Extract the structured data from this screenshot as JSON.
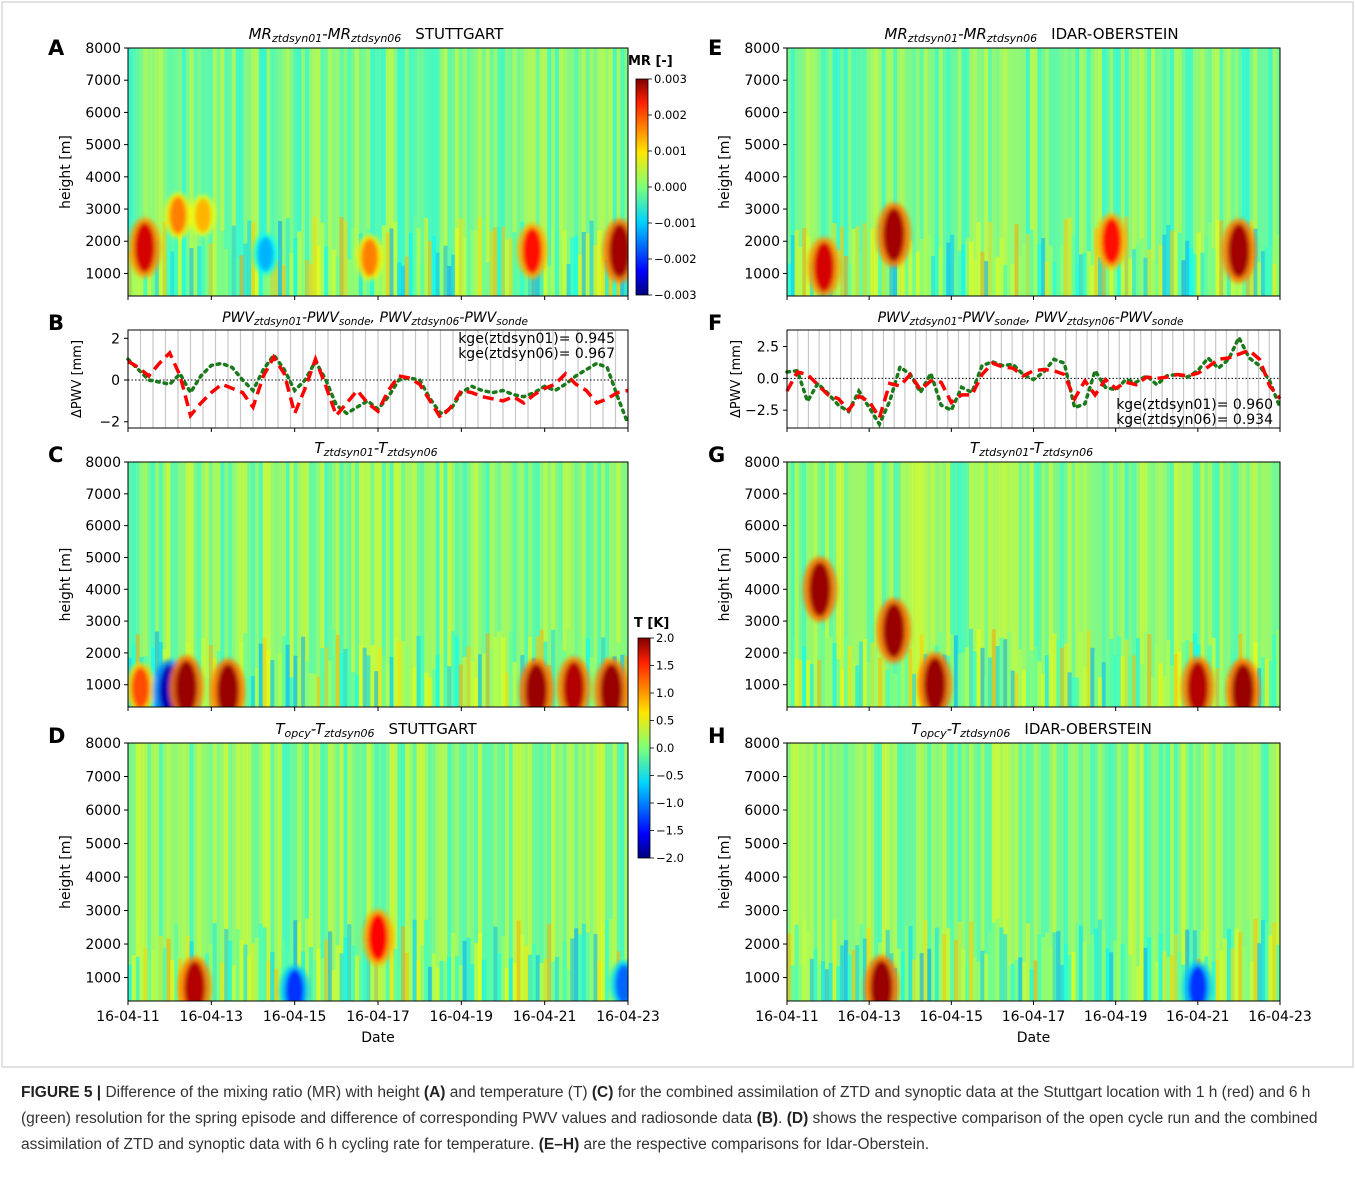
{
  "figure": {
    "x_dates": [
      "16-04-11",
      "16-04-13",
      "16-04-15",
      "16-04-17",
      "16-04-19",
      "16-04-21",
      "16-04-23"
    ],
    "x_label": "Date",
    "height_label": "height [m]",
    "height_ticks": [
      1000,
      2000,
      3000,
      4000,
      5000,
      6000,
      7000,
      8000
    ],
    "colors": {
      "pwv01": "#ff0000",
      "pwv06": "#1a7a1a",
      "frame": "#d9d9d9",
      "caption_text": "#333333"
    }
  },
  "colorbars": {
    "mr": {
      "title": "MR [-]",
      "ticks": [
        "0.003",
        "0.002",
        "0.001",
        "0.000",
        "−0.001",
        "−0.002",
        "−0.003"
      ],
      "range": [
        -0.003,
        0.003
      ]
    },
    "t": {
      "title": "T [K]",
      "ticks": [
        "2.0",
        "1.5",
        "1.0",
        "0.5",
        "0.0",
        "−0.5",
        "−1.0",
        "−1.5",
        "−2.0"
      ],
      "range": [
        -2.0,
        2.0
      ]
    }
  },
  "panels": {
    "A": {
      "letter": "A",
      "title_var": "MR",
      "title_sub1": "ztdsyn01",
      "title_mid": "-MR",
      "title_sub2": "ztdsyn06",
      "station": "STUTTGART"
    },
    "B": {
      "letter": "B",
      "title_a": "PWV",
      "sub_a": "ztdsyn01",
      "title_b": "-PWV",
      "sub_b": "sonde",
      "title_c": ", PWV",
      "sub_c": "ztdsyn06",
      "title_d": "-PWV",
      "sub_d": "sonde",
      "ylabel": "ΔPWV [mm]",
      "yticks": [
        "2",
        "0",
        "−2"
      ],
      "kge1": "kge(ztdsyn01)= 0.945",
      "kge2": "kge(ztdsyn06)= 0.967"
    },
    "C": {
      "letter": "C",
      "title_var": "T",
      "title_sub1": "ztdsyn01",
      "title_mid": "-T",
      "title_sub2": "ztdsyn06",
      "station": ""
    },
    "D": {
      "letter": "D",
      "title_var": "T",
      "title_sub1": "opcy",
      "title_mid": "-T",
      "title_sub2": "ztdsyn06",
      "station": "STUTTGART"
    },
    "E": {
      "letter": "E",
      "title_var": "MR",
      "title_sub1": "ztdsyn01",
      "title_mid": "-MR",
      "title_sub2": "ztdsyn06",
      "station": "IDAR-OBERSTEIN"
    },
    "F": {
      "letter": "F",
      "title_a": "PWV",
      "sub_a": "ztdsyn01",
      "title_b": "-PWV",
      "sub_b": "sonde",
      "title_c": ", PWV",
      "sub_c": "ztdsyn06",
      "title_d": "-PWV",
      "sub_d": "sonde",
      "ylabel": "ΔPWV [mm]",
      "yticks": [
        "2.5",
        "0.0",
        "−2.5"
      ],
      "kge1": "kge(ztdsyn01)= 0.960",
      "kge2": "kge(ztdsyn06)= 0.934"
    },
    "G": {
      "letter": "G",
      "title_var": "T",
      "title_sub1": "ztdsyn01",
      "title_mid": "-T",
      "title_sub2": "ztdsyn06",
      "station": ""
    },
    "H": {
      "letter": "H",
      "title_var": "T",
      "title_sub1": "opcy",
      "title_mid": "-T",
      "title_sub2": "ztdsyn06",
      "station": "IDAR-OBERSTEIN"
    }
  },
  "chart_data": [
    {
      "panel": "A",
      "type": "heatmap",
      "title": "MRztdsyn01-MRztdsyn06 STUTTGART",
      "ylabel": "height [m]",
      "ylim": [
        300,
        8000
      ],
      "xlim": [
        "16-04-11",
        "16-04-23"
      ],
      "colorbar": "MR [-]",
      "vrange": [
        -0.003,
        0.003
      ],
      "hotspots": [
        {
          "date": "16-04-11.4",
          "height": 1800,
          "value": 0.0025
        },
        {
          "date": "16-04-12.2",
          "height": 2800,
          "value": 0.0015
        },
        {
          "date": "16-04-12.8",
          "height": 2800,
          "value": 0.0012
        },
        {
          "date": "16-04-14.3",
          "height": 1600,
          "value": -0.0012
        },
        {
          "date": "16-04-16.8",
          "height": 1500,
          "value": 0.0015
        },
        {
          "date": "16-04-20.7",
          "height": 1700,
          "value": 0.0022
        },
        {
          "date": "16-04-22.8",
          "height": 1700,
          "value": 0.0028
        }
      ]
    },
    {
      "panel": "B",
      "type": "line",
      "title": "PWVztdsyn01-PWVsonde, PWVztdsyn06-PWVsonde",
      "ylabel": "ΔPWV [mm]",
      "ylim": [
        -2.3,
        2.4
      ],
      "xlim": [
        "16-04-11",
        "16-04-23"
      ],
      "series": [
        {
          "name": "ztdsyn01",
          "kge": 0.945,
          "x": [
            "16-04-11.00",
            "16-04-11.25",
            "16-04-11.50",
            "16-04-11.75",
            "16-04-12.00",
            "16-04-12.25",
            "16-04-12.50",
            "16-04-12.75",
            "16-04-13.00",
            "16-04-13.25",
            "16-04-13.50",
            "16-04-13.75",
            "16-04-14.00",
            "16-04-14.25",
            "16-04-14.50",
            "16-04-14.75",
            "16-04-15.00",
            "16-04-15.25",
            "16-04-15.50",
            "16-04-15.75",
            "16-04-16.00",
            "16-04-16.25",
            "16-04-16.50",
            "16-04-16.75",
            "16-04-17.00",
            "16-04-17.25",
            "16-04-17.50",
            "16-04-17.75",
            "16-04-18.00",
            "16-04-18.25",
            "16-04-18.50",
            "16-04-18.75",
            "16-04-19.00",
            "16-04-19.25",
            "16-04-19.50",
            "16-04-19.75",
            "16-04-20.00",
            "16-04-20.25",
            "16-04-20.50",
            "16-04-20.75",
            "16-04-21.00",
            "16-04-21.25",
            "16-04-21.50",
            "16-04-21.75",
            "16-04-22.00",
            "16-04-22.25",
            "16-04-22.50",
            "16-04-22.75",
            "16-04-23.00"
          ],
          "y": [
            0.9,
            0.6,
            0.2,
            0.8,
            1.3,
            0.2,
            -1.7,
            -1.1,
            -0.6,
            -0.2,
            -0.4,
            -0.6,
            -1.3,
            0.2,
            1.1,
            0.3,
            -1.6,
            -0.4,
            1.0,
            -0.3,
            -1.7,
            -1.1,
            -0.5,
            -1.1,
            -1.5,
            -0.5,
            0.2,
            0.1,
            -0.2,
            -1.0,
            -1.8,
            -1.3,
            -0.5,
            -0.6,
            -0.8,
            -0.9,
            -1.0,
            -0.8,
            -1.1,
            -0.7,
            -0.4,
            -0.2,
            0.3,
            -0.2,
            -0.5,
            -1.1,
            -0.9,
            -0.6,
            -0.5
          ]
        },
        {
          "name": "ztdsyn06",
          "kge": 0.967,
          "x": [
            "16-04-11.00",
            "16-04-11.25",
            "16-04-11.50",
            "16-04-11.75",
            "16-04-12.00",
            "16-04-12.25",
            "16-04-12.50",
            "16-04-12.75",
            "16-04-13.00",
            "16-04-13.25",
            "16-04-13.50",
            "16-04-13.75",
            "16-04-14.00",
            "16-04-14.25",
            "16-04-14.50",
            "16-04-14.75",
            "16-04-15.00",
            "16-04-15.25",
            "16-04-15.50",
            "16-04-15.75",
            "16-04-16.00",
            "16-04-16.25",
            "16-04-16.50",
            "16-04-16.75",
            "16-04-17.00",
            "16-04-17.25",
            "16-04-17.50",
            "16-04-17.75",
            "16-04-18.00",
            "16-04-18.25",
            "16-04-18.50",
            "16-04-18.75",
            "16-04-19.00",
            "16-04-19.25",
            "16-04-19.50",
            "16-04-19.75",
            "16-04-20.00",
            "16-04-20.25",
            "16-04-20.50",
            "16-04-20.75",
            "16-04-21.00",
            "16-04-21.25",
            "16-04-21.50",
            "16-04-21.75",
            "16-04-22.00",
            "16-04-22.25",
            "16-04-22.50",
            "16-04-22.75",
            "16-04-23.00"
          ],
          "y": [
            1.0,
            0.5,
            0.0,
            -0.1,
            -0.2,
            0.3,
            -0.6,
            0.2,
            0.7,
            0.8,
            0.6,
            0.0,
            -0.5,
            0.5,
            1.2,
            0.5,
            -0.5,
            0.0,
            0.9,
            0.0,
            -1.2,
            -1.6,
            -1.3,
            -1.0,
            -1.4,
            -0.8,
            0.0,
            0.1,
            0.0,
            -0.9,
            -1.6,
            -1.4,
            -0.6,
            -0.3,
            -0.5,
            -0.6,
            -0.5,
            -0.7,
            -0.8,
            -0.6,
            -0.3,
            -0.5,
            -0.2,
            0.2,
            0.5,
            0.8,
            0.6,
            -0.8,
            -2.1
          ]
        }
      ]
    },
    {
      "panel": "C",
      "type": "heatmap",
      "title": "Tztdsyn01-Tztdsyn06",
      "ylabel": "height [m]",
      "ylim": [
        300,
        8000
      ],
      "xlim": [
        "16-04-11",
        "16-04-23"
      ],
      "colorbar": "T [K]",
      "vrange": [
        -2.0,
        2.0
      ],
      "hotspots": [
        {
          "date": "16-04-11.3",
          "height": 900,
          "value": 1.2
        },
        {
          "date": "16-04-12.0",
          "height": 800,
          "value": -1.8
        },
        {
          "date": "16-04-12.4",
          "height": 900,
          "value": 1.9
        },
        {
          "date": "16-04-13.4",
          "height": 800,
          "value": 1.9
        },
        {
          "date": "16-04-20.8",
          "height": 800,
          "value": 1.9
        },
        {
          "date": "16-04-21.7",
          "height": 900,
          "value": 1.8
        },
        {
          "date": "16-04-22.6",
          "height": 800,
          "value": 1.9
        }
      ]
    },
    {
      "panel": "D",
      "type": "heatmap",
      "title": "Topcy-Tztdsyn06 STUTTGART",
      "xlabel": "Date",
      "ylabel": "height [m]",
      "ylim": [
        300,
        8000
      ],
      "xlim": [
        "16-04-11",
        "16-04-23"
      ],
      "colorbar": "T [K]",
      "vrange": [
        -2.0,
        2.0
      ],
      "hotspots": [
        {
          "date": "16-04-12.6",
          "height": 700,
          "value": 1.8
        },
        {
          "date": "16-04-17.0",
          "height": 2200,
          "value": 1.5
        },
        {
          "date": "16-04-15.0",
          "height": 600,
          "value": -1.3
        },
        {
          "date": "16-04-22.9",
          "height": 800,
          "value": -1.1
        }
      ]
    },
    {
      "panel": "E",
      "type": "heatmap",
      "title": "MRztdsyn01-MRztdsyn06 IDAR-OBERSTEIN",
      "ylabel": "height [m]",
      "ylim": [
        300,
        8000
      ],
      "xlim": [
        "16-04-11",
        "16-04-23"
      ],
      "colorbar": "MR [-]",
      "vrange": [
        -0.003,
        0.003
      ],
      "hotspots": [
        {
          "date": "16-04-11.9",
          "height": 1200,
          "value": 0.0025
        },
        {
          "date": "16-04-13.6",
          "height": 2200,
          "value": 0.0028
        },
        {
          "date": "16-04-18.9",
          "height": 2000,
          "value": 0.0022
        },
        {
          "date": "16-04-22.0",
          "height": 1700,
          "value": 0.0028
        }
      ]
    },
    {
      "panel": "F",
      "type": "line",
      "title": "PWVztdsyn01-PWVsonde, PWVztdsyn06-PWVsonde",
      "ylabel": "ΔPWV [mm]",
      "ylim": [
        -3.9,
        3.8
      ],
      "xlim": [
        "16-04-11",
        "16-04-23"
      ],
      "series": [
        {
          "name": "ztdsyn01",
          "kge": 0.96,
          "x": [
            "16-04-11.00",
            "16-04-11.25",
            "16-04-11.50",
            "16-04-11.75",
            "16-04-12.00",
            "16-04-12.25",
            "16-04-12.50",
            "16-04-12.75",
            "16-04-13.00",
            "16-04-13.25",
            "16-04-13.50",
            "16-04-13.75",
            "16-04-14.00",
            "16-04-14.25",
            "16-04-14.50",
            "16-04-14.75",
            "16-04-15.00",
            "16-04-15.25",
            "16-04-15.50",
            "16-04-15.75",
            "16-04-16.00",
            "16-04-16.25",
            "16-04-16.50",
            "16-04-16.75",
            "16-04-17.00",
            "16-04-17.25",
            "16-04-17.50",
            "16-04-17.75",
            "16-04-18.00",
            "16-04-18.25",
            "16-04-18.50",
            "16-04-18.75",
            "16-04-19.00",
            "16-04-19.25",
            "16-04-19.50",
            "16-04-19.75",
            "16-04-20.00",
            "16-04-20.25",
            "16-04-20.50",
            "16-04-20.75",
            "16-04-21.00",
            "16-04-21.25",
            "16-04-21.50",
            "16-04-21.75",
            "16-04-22.00",
            "16-04-22.25",
            "16-04-22.50",
            "16-04-22.75",
            "16-04-23.00"
          ],
          "y": [
            -1.0,
            0.5,
            0.3,
            -0.5,
            -1.3,
            -1.6,
            -2.5,
            -1.4,
            -1.8,
            -3.1,
            -0.4,
            -0.6,
            0.3,
            -0.9,
            -0.2,
            -0.3,
            -1.9,
            -1.3,
            -1.3,
            0.3,
            1.2,
            0.9,
            0.8,
            0.2,
            0.6,
            0.7,
            0.6,
            0.3,
            -1.6,
            -0.2,
            -1.3,
            -0.1,
            -0.8,
            -0.3,
            -0.5,
            0.1,
            0.0,
            0.1,
            0.3,
            0.2,
            0.4,
            0.9,
            1.5,
            1.6,
            1.9,
            2.2,
            1.5,
            -0.6,
            -1.6
          ]
        },
        {
          "name": "ztdsyn06",
          "kge": 0.934,
          "x": [
            "16-04-11.00",
            "16-04-11.25",
            "16-04-11.50",
            "16-04-11.75",
            "16-04-12.00",
            "16-04-12.25",
            "16-04-12.50",
            "16-04-12.75",
            "16-04-13.00",
            "16-04-13.25",
            "16-04-13.50",
            "16-04-13.75",
            "16-04-14.00",
            "16-04-14.25",
            "16-04-14.50",
            "16-04-14.75",
            "16-04-15.00",
            "16-04-15.25",
            "16-04-15.50",
            "16-04-15.75",
            "16-04-16.00",
            "16-04-16.25",
            "16-04-16.50",
            "16-04-16.75",
            "16-04-17.00",
            "16-04-17.25",
            "16-04-17.50",
            "16-04-17.75",
            "16-04-18.00",
            "16-04-18.25",
            "16-04-18.50",
            "16-04-18.75",
            "16-04-19.00",
            "16-04-19.25",
            "16-04-19.50",
            "16-04-19.75",
            "16-04-20.00",
            "16-04-20.25",
            "16-04-20.50",
            "16-04-20.75",
            "16-04-21.00",
            "16-04-21.25",
            "16-04-21.50",
            "16-04-21.75",
            "16-04-22.00",
            "16-04-22.25",
            "16-04-22.50",
            "16-04-22.75",
            "16-04-23.00"
          ],
          "y": [
            0.5,
            0.6,
            -1.8,
            -0.4,
            -1.2,
            -2.1,
            -2.6,
            -1.0,
            -2.3,
            -3.6,
            -1.8,
            0.9,
            0.3,
            -1.1,
            0.4,
            -2.1,
            -2.5,
            -0.7,
            -1.1,
            1.0,
            1.3,
            1.0,
            1.1,
            0.3,
            -0.1,
            0.5,
            1.5,
            1.2,
            -2.3,
            -2.0,
            0.6,
            -0.7,
            -0.9,
            -0.1,
            -0.3,
            0.2,
            -0.5,
            0.2,
            0.3,
            0.1,
            0.6,
            1.6,
            0.8,
            1.5,
            3.2,
            1.6,
            1.0,
            -0.2,
            -2.3
          ]
        }
      ]
    },
    {
      "panel": "G",
      "type": "heatmap",
      "title": "Tztdsyn01-Tztdsyn06",
      "ylabel": "height [m]",
      "ylim": [
        300,
        8000
      ],
      "xlim": [
        "16-04-11",
        "16-04-23"
      ],
      "colorbar": "T [K]",
      "vrange": [
        -2.0,
        2.0
      ],
      "hotspots": [
        {
          "date": "16-04-11.8",
          "height": 4000,
          "value": 1.9
        },
        {
          "date": "16-04-13.6",
          "height": 2700,
          "value": 1.9
        },
        {
          "date": "16-04-14.6",
          "height": 1000,
          "value": 1.9
        },
        {
          "date": "16-04-21.0",
          "height": 900,
          "value": 1.8
        },
        {
          "date": "16-04-22.1",
          "height": 800,
          "value": 1.9
        }
      ]
    },
    {
      "panel": "H",
      "type": "heatmap",
      "title": "Topcy-Tztdsyn06 IDAR-OBERSTEIN",
      "xlabel": "Date",
      "ylabel": "height [m]",
      "ylim": [
        300,
        8000
      ],
      "xlim": [
        "16-04-11",
        "16-04-23"
      ],
      "colorbar": "T [K]",
      "vrange": [
        -2.0,
        2.0
      ],
      "hotspots": [
        {
          "date": "16-04-13.3",
          "height": 700,
          "value": 1.9
        },
        {
          "date": "16-04-21.0",
          "height": 700,
          "value": -1.3
        }
      ]
    }
  ],
  "caption": {
    "label": "FIGURE 5 |",
    "p1": " Difference of the mixing ratio (MR) with height ",
    "bA": "(A)",
    "p2": " and temperature (T) ",
    "bC": "(C)",
    "p3": " for the combined assimilation of ZTD and synoptic data at the Stuttgart location with 1 h (red) and 6 h (green) resolution for the spring episode and difference of corresponding PWV values and radiosonde data ",
    "bB": "(B)",
    "p4": ". ",
    "bD": "(D)",
    "p5": " shows the respective comparison of the open cycle run and the combined assimilation of ZTD and synoptic data with 6 h cycling rate for temperature. ",
    "bEH": "(E–H)",
    "p6": " are the respective comparisons for Idar-Oberstein."
  }
}
